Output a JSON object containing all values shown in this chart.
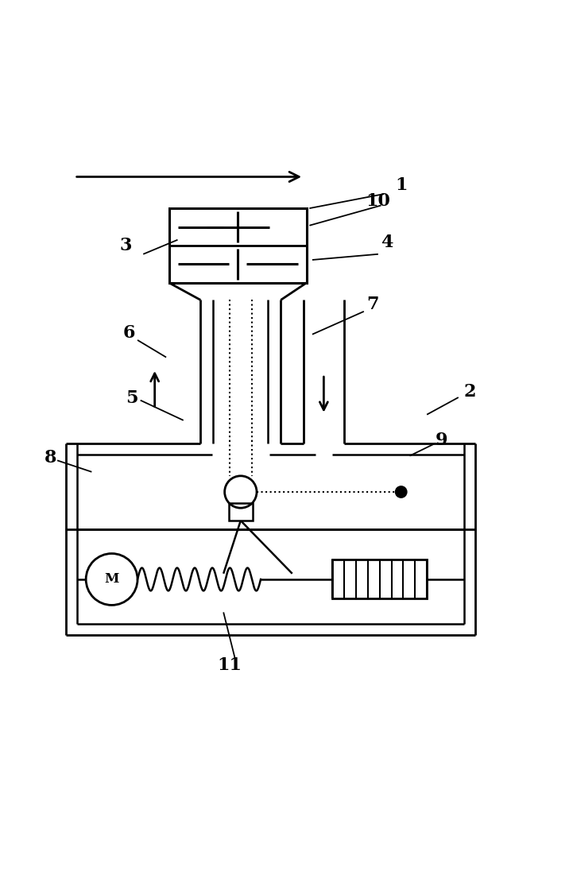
{
  "bg_color": "#ffffff",
  "line_color": "#000000",
  "fig_width": 7.21,
  "fig_height": 11.01,
  "dpi": 100
}
